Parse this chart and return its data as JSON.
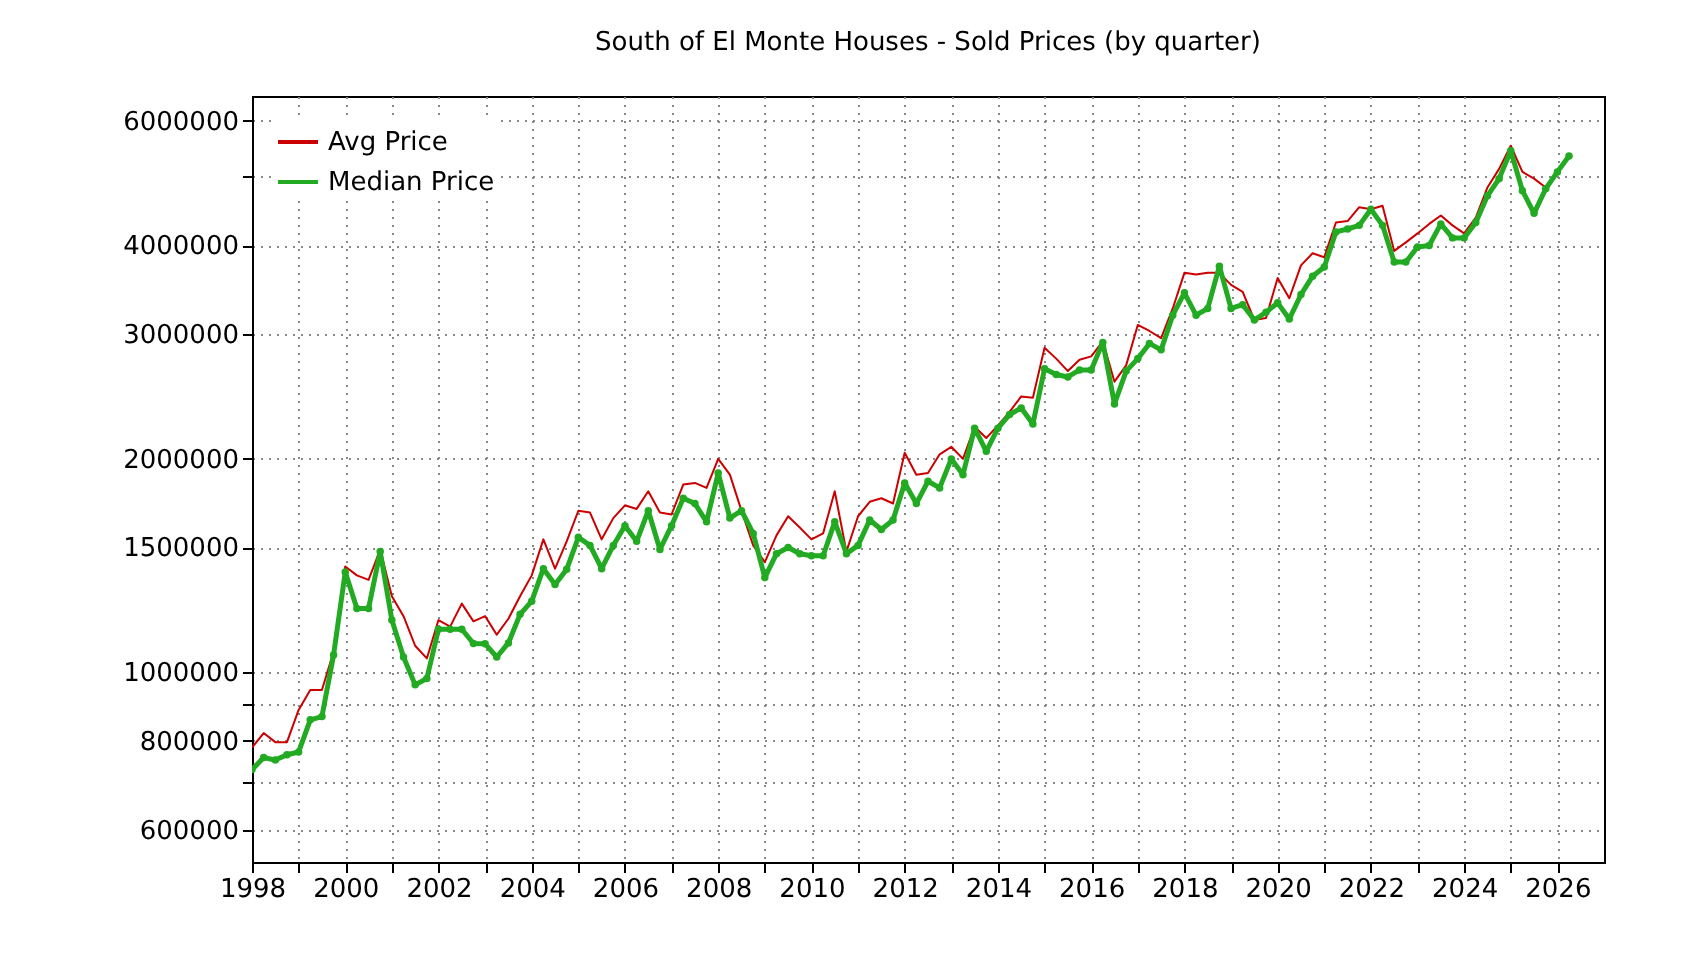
{
  "chart_data": {
    "type": "line",
    "title": "South of El Monte Houses - Sold Prices (by quarter)",
    "x": [
      1998,
      1998.25,
      1998.5,
      1998.75,
      1999,
      1999.25,
      1999.5,
      1999.75,
      2000,
      2000.25,
      2000.5,
      2000.75,
      2001,
      2001.25,
      2001.5,
      2001.75,
      2002,
      2002.25,
      2002.5,
      2002.75,
      2003,
      2003.25,
      2003.5,
      2003.75,
      2004,
      2004.25,
      2004.5,
      2004.75,
      2005,
      2005.25,
      2005.5,
      2005.75,
      2006,
      2006.25,
      2006.5,
      2006.75,
      2007,
      2007.25,
      2007.5,
      2007.75,
      2008,
      2008.25,
      2008.5,
      2008.75,
      2009,
      2009.25,
      2009.5,
      2009.75,
      2010,
      2010.25,
      2010.5,
      2010.75,
      2011,
      2011.25,
      2011.5,
      2011.75,
      2012,
      2012.25,
      2012.5,
      2012.75,
      2013,
      2013.25,
      2013.5,
      2013.75,
      2014,
      2014.25,
      2014.5,
      2014.75,
      2015,
      2015.25,
      2015.5,
      2015.75,
      2016,
      2016.25,
      2016.5,
      2016.75,
      2017,
      2017.25,
      2017.5,
      2017.75,
      2018,
      2018.25,
      2018.5,
      2018.75,
      2019,
      2019.25,
      2019.5,
      2019.75,
      2020,
      2020.25,
      2020.5,
      2020.75,
      2021,
      2021.25,
      2021.5,
      2021.75,
      2022,
      2022.25,
      2022.5,
      2022.75,
      2023,
      2023.25,
      2023.5,
      2023.75,
      2024,
      2024.25,
      2024.5,
      2024.75,
      2025,
      2025.25,
      2025.5,
      2025.75,
      2026,
      2026.25
    ],
    "series": [
      {
        "name": "Avg Price",
        "color": "#cc0000",
        "marker": "none",
        "values": [
          783000,
          821000,
          797000,
          797000,
          885000,
          944000,
          944000,
          1069000,
          1410000,
          1370000,
          1350000,
          1490000,
          1280000,
          1200000,
          1090000,
          1046000,
          1185000,
          1160000,
          1250000,
          1180000,
          1200000,
          1130000,
          1190000,
          1280000,
          1370000,
          1540000,
          1400000,
          1530000,
          1690000,
          1680000,
          1540000,
          1650000,
          1720000,
          1700000,
          1800000,
          1680000,
          1670000,
          1840000,
          1850000,
          1820000,
          2000000,
          1900000,
          1690000,
          1510000,
          1430000,
          1560000,
          1660000,
          1600000,
          1540000,
          1570000,
          1800000,
          1480000,
          1660000,
          1740000,
          1760000,
          1730000,
          2040000,
          1900000,
          1910000,
          2030000,
          2080000,
          2000000,
          2220000,
          2140000,
          2230000,
          2330000,
          2450000,
          2440000,
          2870000,
          2770000,
          2660000,
          2760000,
          2790000,
          2930000,
          2570000,
          2710000,
          3090000,
          3030000,
          2960000,
          3260000,
          3660000,
          3640000,
          3660000,
          3660000,
          3520000,
          3440000,
          3140000,
          3160000,
          3600000,
          3370000,
          3750000,
          3900000,
          3850000,
          4310000,
          4330000,
          4530000,
          4500000,
          4550000,
          3930000,
          4040000,
          4160000,
          4290000,
          4410000,
          4270000,
          4160000,
          4380000,
          4830000,
          5130000,
          5530000,
          5080000,
          4970000,
          4830000,
          5080000,
          5350000
        ]
      },
      {
        "name": "Median Price",
        "color": "#22aa22",
        "marker": "circle",
        "values": [
          729000,
          758000,
          752000,
          765000,
          772000,
          857000,
          866000,
          1058000,
          1385000,
          1230000,
          1230000,
          1480000,
          1185000,
          1051000,
          960000,
          980000,
          1150000,
          1150000,
          1150000,
          1098000,
          1097000,
          1051000,
          1100000,
          1207000,
          1260000,
          1400000,
          1330000,
          1397000,
          1550000,
          1510000,
          1400000,
          1510000,
          1610000,
          1530000,
          1690000,
          1490000,
          1610000,
          1760000,
          1730000,
          1630000,
          1910000,
          1650000,
          1690000,
          1570000,
          1360000,
          1470000,
          1500000,
          1470000,
          1460000,
          1460000,
          1630000,
          1470000,
          1510000,
          1640000,
          1590000,
          1640000,
          1850000,
          1730000,
          1860000,
          1820000,
          2000000,
          1900000,
          2210000,
          2050000,
          2210000,
          2310000,
          2360000,
          2240000,
          2680000,
          2630000,
          2610000,
          2670000,
          2670000,
          2920000,
          2390000,
          2660000,
          2770000,
          2910000,
          2850000,
          3190000,
          3430000,
          3190000,
          3260000,
          3740000,
          3260000,
          3300000,
          3140000,
          3220000,
          3320000,
          3150000,
          3410000,
          3620000,
          3730000,
          4180000,
          4220000,
          4270000,
          4500000,
          4270000,
          3790000,
          3790000,
          3980000,
          4000000,
          4290000,
          4100000,
          4100000,
          4310000,
          4700000,
          4970000,
          5440000,
          4780000,
          4440000,
          4810000,
          5080000,
          5350000
        ]
      }
    ],
    "xlim": [
      1998,
      2027
    ],
    "xticks": [
      1998,
      {
        "value": 1999,
        "label": null
      },
      2000,
      {
        "value": 2001,
        "label": null
      },
      2002,
      {
        "value": 2003,
        "label": null
      },
      2004,
      {
        "value": 2005,
        "label": null
      },
      2006,
      {
        "value": 2007,
        "label": null
      },
      2008,
      {
        "value": 2009,
        "label": null
      },
      2010,
      {
        "value": 2011,
        "label": null
      },
      2012,
      {
        "value": 2013,
        "label": null
      },
      2014,
      {
        "value": 2015,
        "label": null
      },
      2016,
      {
        "value": 2017,
        "label": null
      },
      2018,
      {
        "value": 2019,
        "label": null
      },
      2020,
      {
        "value": 2021,
        "label": null
      },
      2022,
      {
        "value": 2023,
        "label": null
      },
      2024,
      {
        "value": 2025,
        "label": null
      },
      2026
    ],
    "ylim": [
      540000,
      6500000
    ],
    "yticks": [
      600000,
      {
        "value": 700000,
        "label": null
      },
      800000,
      {
        "value": 900000,
        "label": null
      },
      1000000,
      1500000,
      2000000,
      3000000,
      4000000,
      {
        "value": 5000000,
        "label": null
      },
      6000000
    ],
    "log": true,
    "grid": true,
    "legend": "top left"
  }
}
